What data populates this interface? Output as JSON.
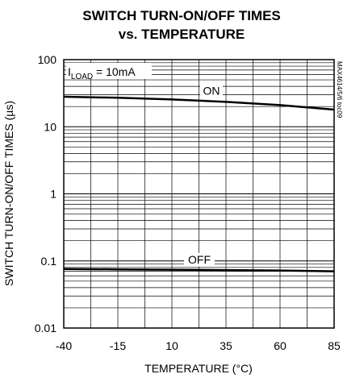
{
  "chart_data": {
    "type": "line",
    "title_line1": "SWITCH TURN-ON/OFF TIMES",
    "title_line2": "vs. TEMPERATURE",
    "xlabel": "TEMPERATURE (°C)",
    "ylabel": "SWITCH TURN-ON/OFF TIMES (µs)",
    "x_scale": "linear",
    "y_scale": "log",
    "xlim": [
      -40,
      85
    ],
    "ylim": [
      0.01,
      100
    ],
    "x_ticks": [
      -40,
      -15,
      10,
      35,
      60,
      85
    ],
    "x_tick_labels": [
      "-40",
      "-15",
      "10",
      "35",
      "60",
      "85"
    ],
    "y_ticks": [
      0.01,
      0.1,
      1,
      10,
      100
    ],
    "y_tick_labels": [
      "0.01",
      "0.1",
      "1",
      "10",
      "100"
    ],
    "grid": true,
    "annotation_main": "I",
    "annotation_sub": "LOAD",
    "annotation_rest": " = 10mA",
    "side_code": "MAX4614/5/6 toc09",
    "series": [
      {
        "name": "ON",
        "x": [
          -40,
          -15,
          10,
          35,
          60,
          85
        ],
        "y": [
          28,
          27,
          25.5,
          23.5,
          21,
          18
        ]
      },
      {
        "name": "OFF",
        "x": [
          -40,
          -15,
          10,
          35,
          60,
          85
        ],
        "y": [
          0.076,
          0.075,
          0.074,
          0.073,
          0.072,
          0.07
        ]
      }
    ]
  }
}
